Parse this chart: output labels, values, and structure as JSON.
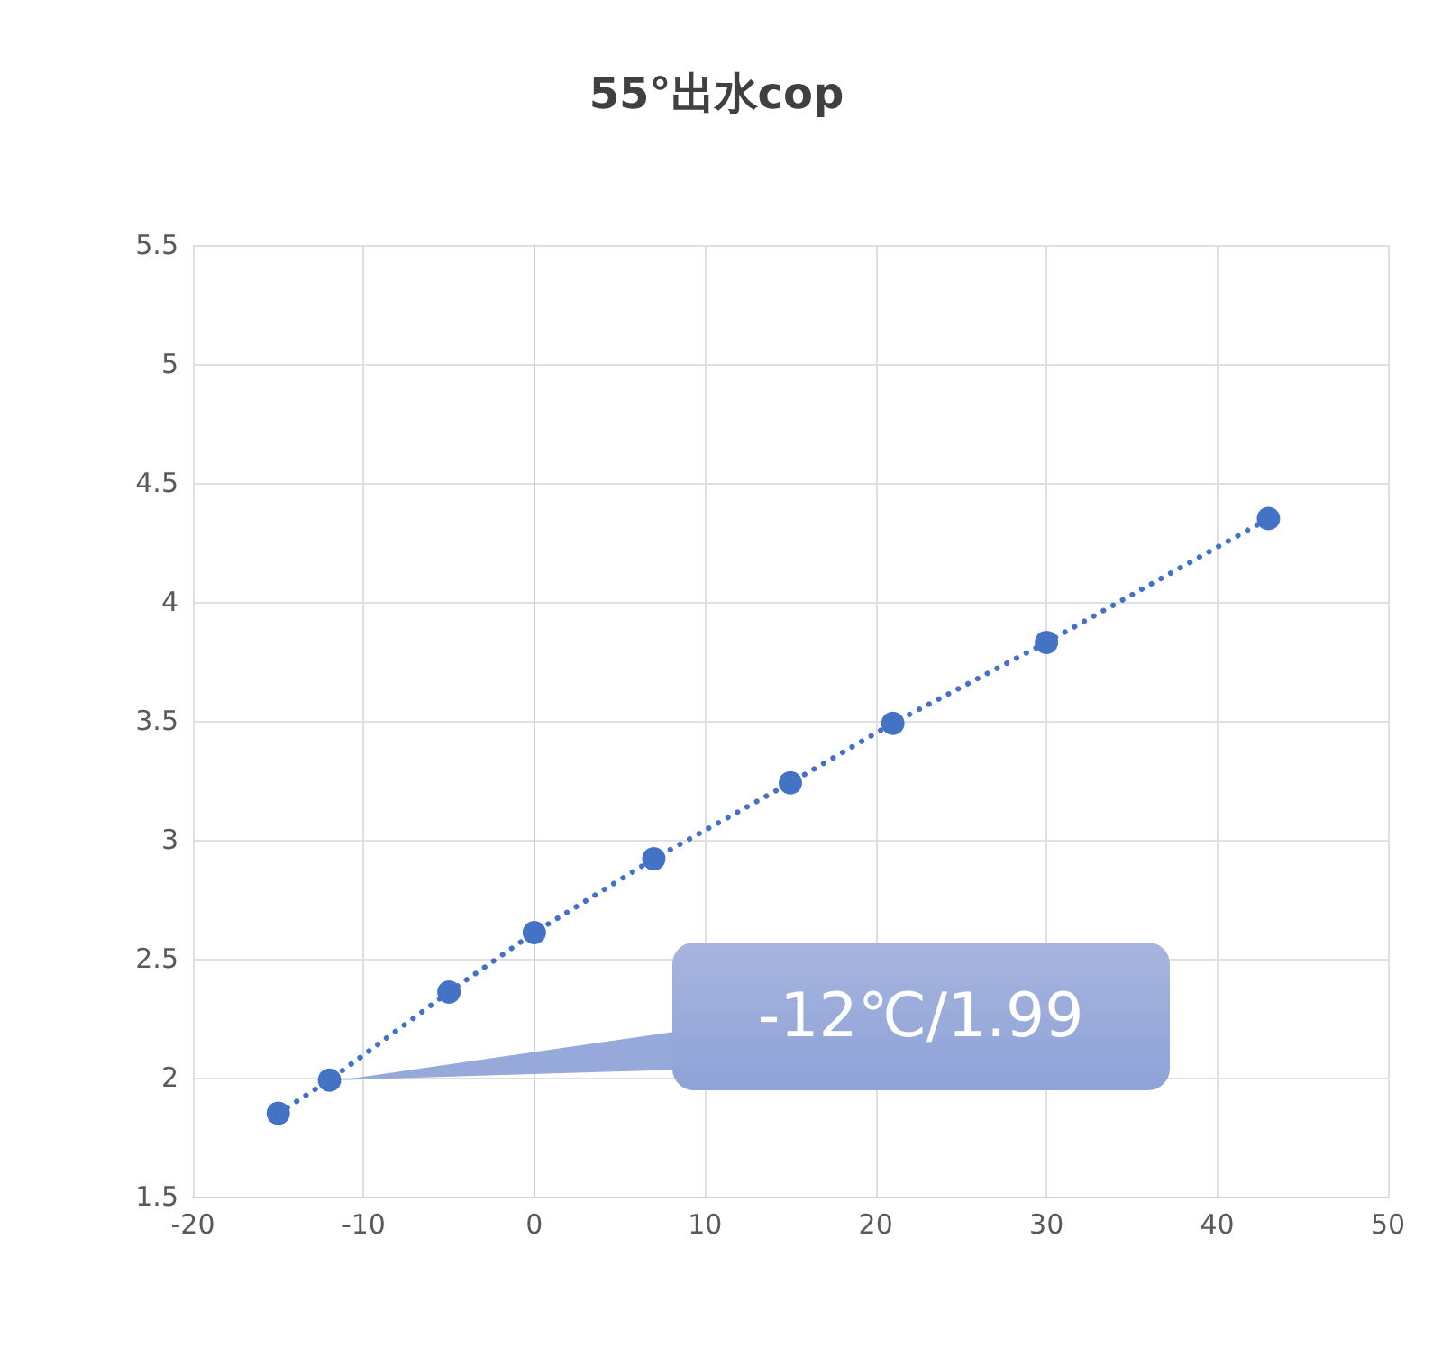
{
  "chart_data": {
    "type": "line",
    "title": "55°出水cop",
    "x": [
      -15,
      -12,
      -5,
      0,
      7,
      15,
      21,
      30,
      43
    ],
    "series": [
      {
        "color": "#4472c4",
        "values": [
          1.85,
          1.99,
          2.36,
          2.61,
          2.92,
          3.24,
          3.49,
          3.83,
          4.35
        ]
      }
    ],
    "xlim": [
      -20,
      50
    ],
    "xticks": [
      -20,
      -10,
      0,
      10,
      20,
      30,
      40,
      50
    ],
    "ylim": [
      1.5,
      5.5
    ],
    "yticks": [
      1.5,
      2,
      2.5,
      3,
      3.5,
      4,
      4.5,
      5,
      5.5
    ],
    "grid": true,
    "marker": "circle",
    "line_style": "dotted",
    "annotations": [
      {
        "text": "-12℃/1.99",
        "x": -12,
        "y": 1.99
      }
    ]
  }
}
